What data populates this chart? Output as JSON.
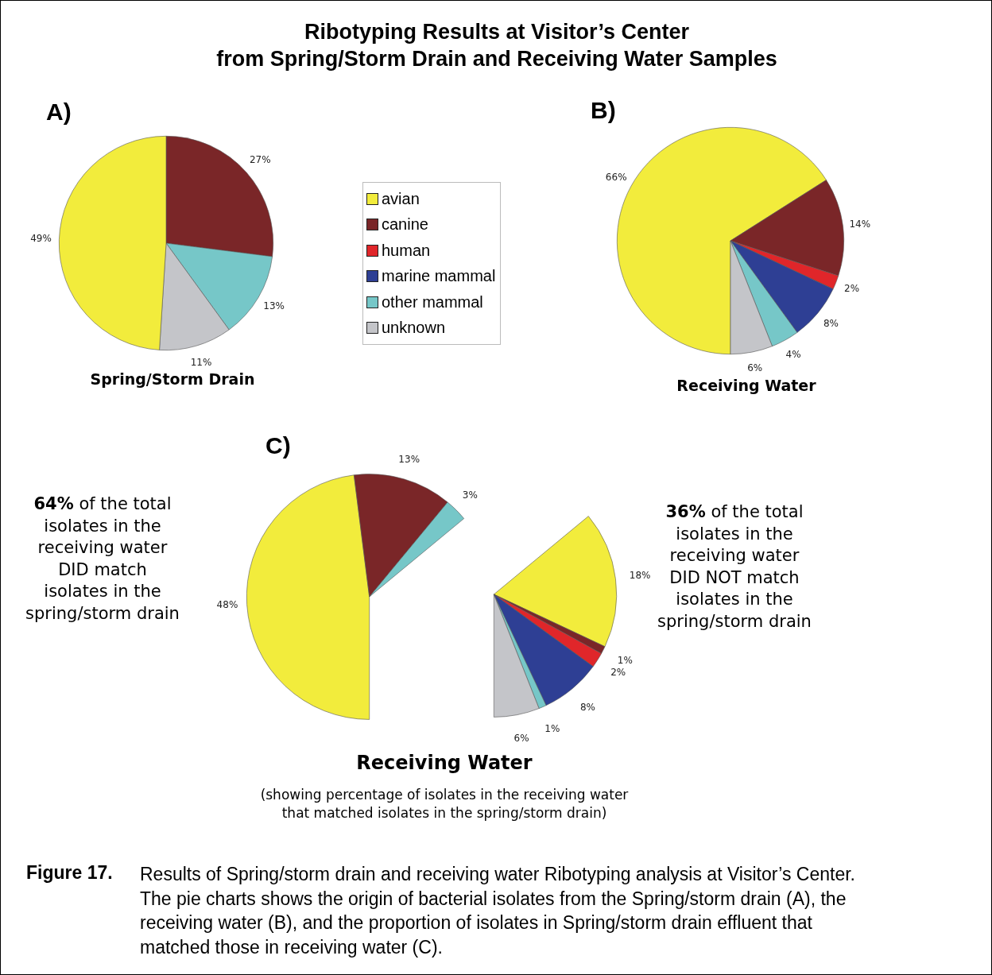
{
  "chart_data": [
    {
      "type": "pie",
      "title": "Ribotyping Results at Visitor’s Center\nfrom Spring/Storm Drain and Receiving Water Samples",
      "subtitle": "Spring/Storm Drain",
      "annotations": [
        "A)"
      ],
      "categories": [
        null,
        null,
        null,
        null
      ],
      "values": [
        27,
        13,
        11,
        49
      ],
      "colors": [
        "#7a2628",
        "#76c7c8",
        "#c4c5c9",
        "#f2ec3c"
      ],
      "value_labels": [
        "27%",
        "13%",
        "11%",
        "49%"
      ]
    },
    {
      "type": "pie",
      "title": "B)",
      "subtitle": "Receiving Water",
      "legend": "left",
      "categories": [
        "avian",
        "canine",
        "human",
        "marine mammal",
        "other mammal",
        "unknown"
      ],
      "values": [
        66,
        14,
        2,
        8,
        4,
        6
      ],
      "colors": [
        "#f2ec3c",
        "#7a2628",
        "#e0262a",
        "#2e3f94",
        "#76c7c8",
        "#c4c5c9"
      ],
      "value_labels": [
        "66%",
        "14%",
        "2%",
        "8%",
        "4%",
        "6%"
      ]
    },
    {
      "type": "pie",
      "title": "C)",
      "subtitle": "Receiving Water",
      "annotations": [
        "(showing percentage of isolates in the receiving water\nthat matched isolates in the spring/storm drain)",
        "64% of the total\nisolates in the\nreceiving water\nDID match\nisolates in the\nspring/storm drain"
      ],
      "categories": [
        null,
        null,
        null
      ],
      "values": [
        48,
        13,
        3
      ],
      "colors": [
        "#f2ec3c",
        "#7a2628",
        "#76c7c8"
      ],
      "value_labels": [
        "48%",
        "13%",
        "3%"
      ]
    },
    {
      "type": "pie",
      "annotations": [
        "36% of the total\nisolates in the\nreceiving water\nDID NOT match\nisolates in the\nspring/storm drain",
        "Figure 17.",
        "Results of Spring/storm drain and receiving water Ribotyping analysis at Visitor’s Center.\nThe pie charts shows the origin of bacterial isolates from the Spring/storm drain (A), the\nreceiving water (B), and the proportion of isolates in Spring/storm drain effluent that\nmatched those in receiving water (C)."
      ],
      "categories": [
        null,
        null,
        null,
        null,
        null,
        null
      ],
      "values": [
        18,
        1,
        2,
        8,
        1,
        6
      ],
      "colors": [
        "#f2ec3c",
        "#7a2628",
        "#e0262a",
        "#2e3f94",
        "#76c7c8",
        "#c4c5c9"
      ],
      "value_labels": [
        "18%",
        "1%",
        "2%",
        "8%",
        "1%",
        "6%"
      ]
    }
  ]
}
